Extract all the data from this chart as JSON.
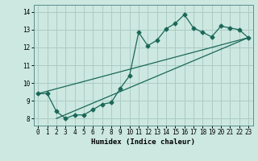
{
  "title": "",
  "xlabel": "Humidex (Indice chaleur)",
  "ylabel": "",
  "bg_color": "#cce8e0",
  "grid_color": "#aaccc4",
  "line_color": "#1a6858",
  "xlim": [
    -0.5,
    23.5
  ],
  "ylim": [
    7.6,
    14.4
  ],
  "xticks": [
    0,
    1,
    2,
    3,
    4,
    5,
    6,
    7,
    8,
    9,
    10,
    11,
    12,
    13,
    14,
    15,
    16,
    17,
    18,
    19,
    20,
    21,
    22,
    23
  ],
  "yticks": [
    8,
    9,
    10,
    11,
    12,
    13,
    14
  ],
  "line1_x": [
    0,
    1,
    2,
    3,
    4,
    5,
    6,
    7,
    8,
    9,
    10,
    11,
    12,
    13,
    14,
    15,
    16,
    17,
    18,
    19,
    20,
    21,
    22,
    23
  ],
  "line1_y": [
    9.4,
    9.4,
    8.4,
    8.0,
    8.2,
    8.2,
    8.5,
    8.8,
    8.9,
    9.7,
    10.4,
    12.85,
    12.1,
    12.4,
    13.05,
    13.35,
    13.85,
    13.1,
    12.85,
    12.6,
    13.2,
    13.1,
    13.0,
    12.55
  ],
  "line2_x": [
    0,
    23
  ],
  "line2_y": [
    9.4,
    12.55
  ],
  "line3_x": [
    2,
    23
  ],
  "line3_y": [
    8.0,
    12.55
  ]
}
